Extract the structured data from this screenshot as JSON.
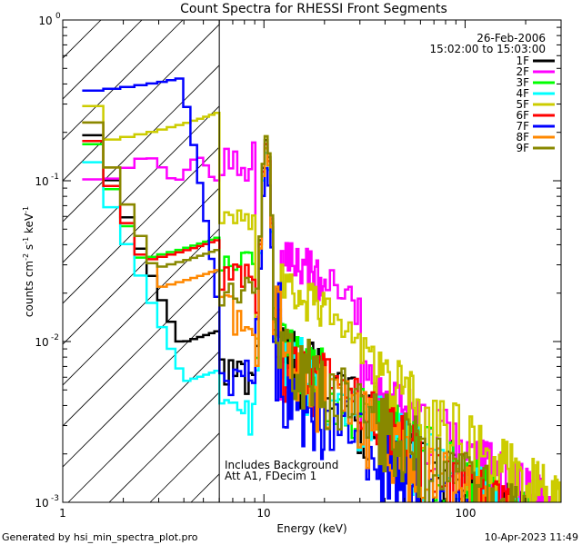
{
  "chart_data": {
    "type": "line",
    "title": "Count Spectra for RHESSI Front Segments",
    "xlabel": "Energy (keV)",
    "ylabel_parts": [
      "counts cm",
      "-2",
      " s",
      "-1",
      " keV",
      "-1"
    ],
    "xscale": "log",
    "yscale": "log",
    "xlim": [
      1,
      300
    ],
    "ylim": [
      0.001,
      1
    ],
    "x_ticks": [
      {
        "value": 1,
        "label": "1"
      },
      {
        "value": 10,
        "label": "10"
      },
      {
        "value": 100,
        "label": "100"
      }
    ],
    "y_ticks": [
      {
        "value": 1,
        "base": "10",
        "exp": "0"
      },
      {
        "value": 0.1,
        "base": "10",
        "exp": "-1"
      },
      {
        "value": 0.01,
        "base": "10",
        "exp": "-2"
      },
      {
        "value": 0.001,
        "base": "10",
        "exp": "-3"
      }
    ],
    "date": "26-Feb-2006",
    "time_range": "15:02:00 to 15:03:00",
    "hatched_region_kev": [
      1,
      6
    ],
    "annotations": [
      "Includes Background",
      "Att A1, FDecim 1"
    ],
    "series": [
      {
        "name": "1F",
        "color": "#000000",
        "low": 0.25,
        "mid_factor": 0.03,
        "tail": 0.003,
        "peak": 0.18
      },
      {
        "name": "2F",
        "color": "#ff00ff",
        "low": 0.12,
        "mid_factor": 0.0,
        "tail": 0.0045,
        "peak": 0.17
      },
      {
        "name": "3F",
        "color": "#00ff00",
        "low": 0.22,
        "mid_factor": 0.13,
        "tail": 0.003,
        "peak": 0.16
      },
      {
        "name": "4F",
        "color": "#00ffff",
        "low": 0.17,
        "mid_factor": 0.025,
        "tail": 0.0028,
        "peak": 0.15
      },
      {
        "name": "5F",
        "color": "#cccc00",
        "low": 0.38,
        "mid_factor": 0.45,
        "tail": 0.0055,
        "peak": 0.19
      },
      {
        "name": "6F",
        "color": "#ff0000",
        "low": 0.23,
        "mid_factor": 0.12,
        "tail": 0.0028,
        "peak": 0.17
      },
      {
        "name": "7F",
        "color": "#0000ff",
        "low": 0.35,
        "mid_factor": 0.02,
        "tail": 0.0018,
        "peak": 0.12
      },
      {
        "name": "8F",
        "color": "#ff8800",
        "low": 0.3,
        "mid_factor": 0.06,
        "tail": 0.0025,
        "peak": 0.16
      },
      {
        "name": "9F",
        "color": "#888800",
        "low": 0.3,
        "mid_factor": 0.08,
        "tail": 0.003,
        "peak": 0.19
      }
    ]
  },
  "footer": {
    "left": "Generated by hsi_min_spectra_plot.pro",
    "right": "10-Apr-2023 11:49"
  }
}
